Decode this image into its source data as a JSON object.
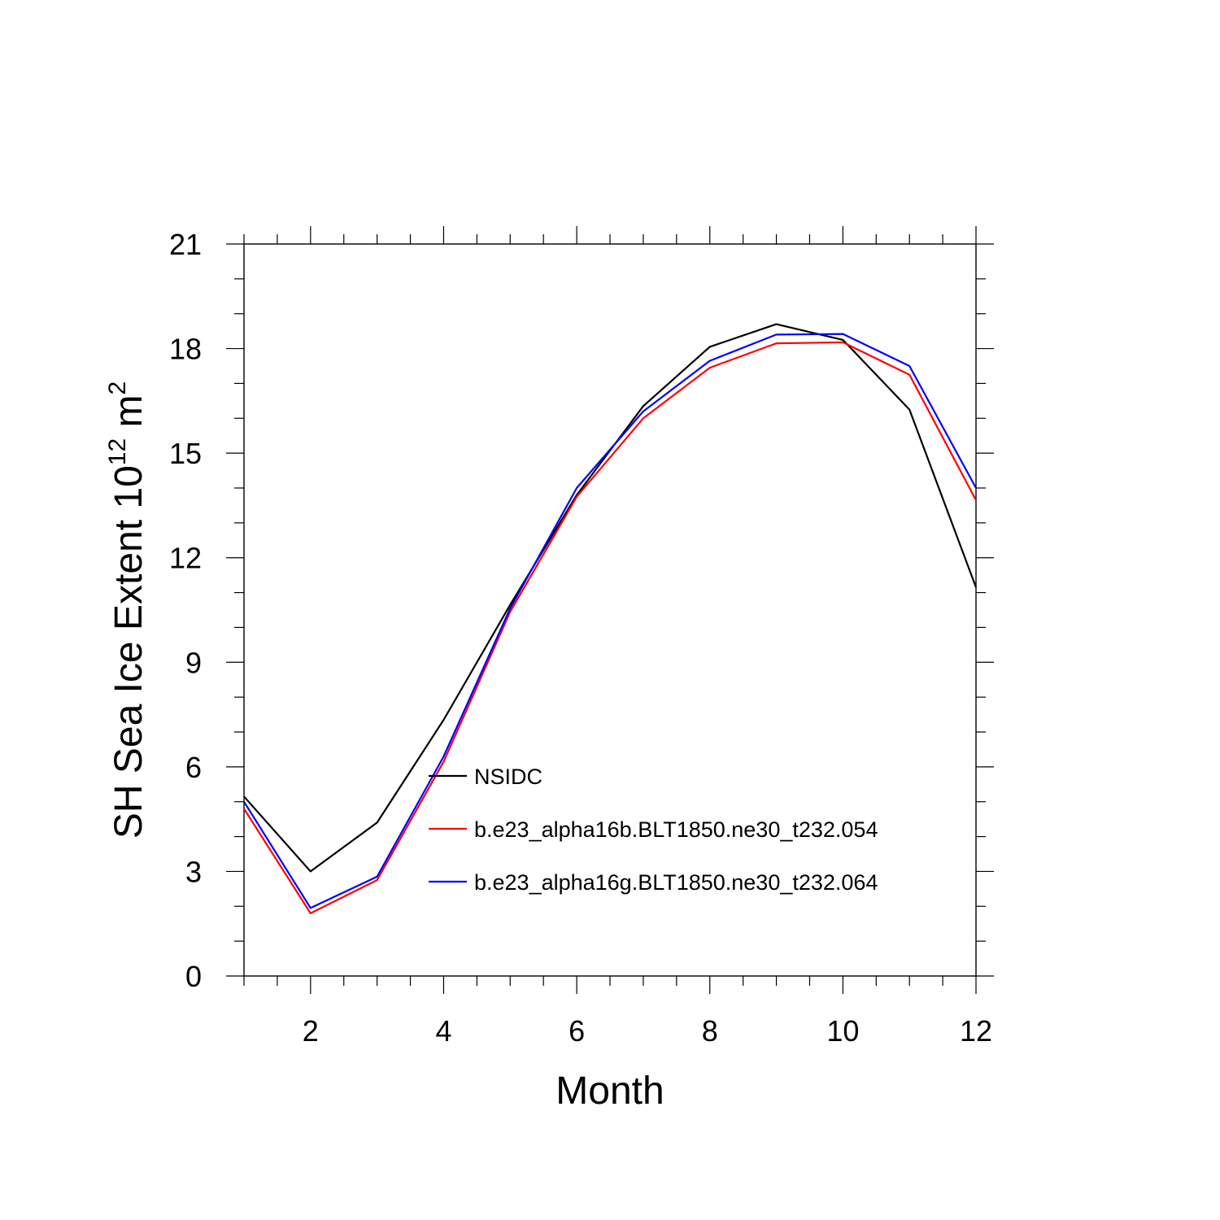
{
  "chart_data": {
    "type": "line",
    "title": "",
    "xlabel": "Month",
    "ylabel": {
      "text": "SH Sea Ice Extent 10",
      "exponent": "12",
      "unit": " m",
      "unit_exponent": "2"
    },
    "xlim": [
      1,
      12
    ],
    "ylim": [
      0,
      21
    ],
    "x_ticks": [
      2,
      4,
      6,
      8,
      10,
      12
    ],
    "y_ticks": [
      0,
      3,
      6,
      9,
      12,
      15,
      18,
      21
    ],
    "legend_position": "lower-center",
    "x": [
      1,
      2,
      3,
      4,
      5,
      6,
      7,
      8,
      9,
      10,
      11,
      12
    ],
    "series": [
      {
        "name": "NSIDC",
        "color": "#000000",
        "values": [
          5.15,
          3.0,
          4.4,
          7.35,
          10.65,
          13.8,
          16.35,
          18.05,
          18.7,
          18.25,
          16.25,
          11.15
        ]
      },
      {
        "name": "b.e23_alpha16b.BLT1850.ne30_t232.054",
        "color": "#ff0000",
        "values": [
          4.8,
          1.8,
          2.75,
          6.15,
          10.45,
          13.75,
          16.0,
          17.45,
          18.15,
          18.18,
          17.25,
          13.65
        ]
      },
      {
        "name": "b.e23_alpha16g.BLT1850.ne30_t232.064",
        "color": "#0000ff",
        "values": [
          5.0,
          1.95,
          2.85,
          6.3,
          10.55,
          14.0,
          16.2,
          17.65,
          18.4,
          18.42,
          17.5,
          14.0
        ]
      }
    ]
  }
}
